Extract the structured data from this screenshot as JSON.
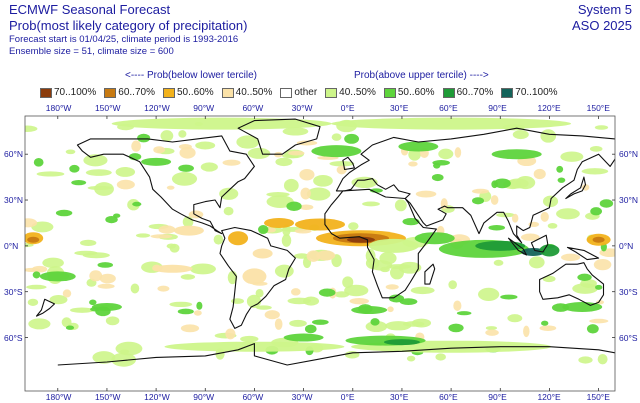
{
  "header": {
    "title": "ECMWF Seasonal Forecast",
    "subtitle": "Prob(most likely category of precipitation)",
    "forecast_info": "Forecast start is 01/04/25, climate period is 1993-2016",
    "ensemble_info": "Ensemble size = 51, climate size = 600",
    "system": "System 5",
    "season": "ASO 2025"
  },
  "legend": {
    "below_label": "<---- Prob(below lower tercile)",
    "above_label": "Prob(above upper tercile) ---->",
    "items": [
      {
        "label": "70..100%",
        "color": "#8b3c0c"
      },
      {
        "label": "60..70%",
        "color": "#c77a12"
      },
      {
        "label": "50..60%",
        "color": "#f2b21c"
      },
      {
        "label": "40..50%",
        "color": "#fbe2a8"
      },
      {
        "label": "other",
        "color": "#ffffff"
      },
      {
        "label": "40..50%",
        "color": "#cdf58a"
      },
      {
        "label": "50..60%",
        "color": "#5ed43c"
      },
      {
        "label": "60..70%",
        "color": "#1f9b37"
      },
      {
        "label": "70..100%",
        "color": "#14635a"
      }
    ]
  },
  "axes": {
    "lon_labels": [
      "180°W",
      "150°W",
      "120°W",
      "90°W",
      "60°W",
      "30°W",
      "0°E",
      "30°E",
      "60°E",
      "90°E",
      "120°E",
      "150°E"
    ],
    "lat_labels": [
      "60°N",
      "30°N",
      "0°N",
      "30°S",
      "60°S"
    ]
  }
}
